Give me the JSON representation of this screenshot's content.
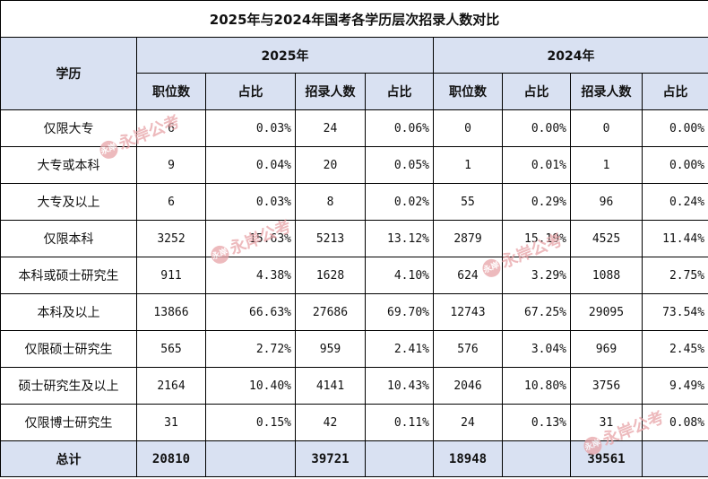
{
  "title": "2025年与2024年国考各学历层次招录人数对比",
  "header": {
    "education": "学历",
    "year_2025": "2025年",
    "year_2024": "2024年",
    "sub": [
      "职位数",
      "占比",
      "招录人数",
      "占比",
      "职位数",
      "占比",
      "招录人数",
      "占比"
    ]
  },
  "rows": [
    {
      "edu": "仅限大专",
      "v": [
        "6",
        "0.03%",
        "24",
        "0.06%",
        "0",
        "0.00%",
        "0",
        "0.00%"
      ]
    },
    {
      "edu": "大专或本科",
      "v": [
        "9",
        "0.04%",
        "20",
        "0.05%",
        "1",
        "0.01%",
        "1",
        "0.00%"
      ]
    },
    {
      "edu": "大专及以上",
      "v": [
        "6",
        "0.03%",
        "8",
        "0.02%",
        "55",
        "0.29%",
        "96",
        "0.24%"
      ]
    },
    {
      "edu": "仅限本科",
      "v": [
        "3252",
        "15.63%",
        "5213",
        "13.12%",
        "2879",
        "15.19%",
        "4525",
        "11.44%"
      ]
    },
    {
      "edu": "本科或硕士研究生",
      "v": [
        "911",
        "4.38%",
        "1628",
        "4.10%",
        "624",
        "3.29%",
        "1088",
        "2.75%"
      ]
    },
    {
      "edu": "本科及以上",
      "v": [
        "13866",
        "66.63%",
        "27686",
        "69.70%",
        "12743",
        "67.25%",
        "29095",
        "73.54%"
      ]
    },
    {
      "edu": "仅限硕士研究生",
      "v": [
        "565",
        "2.72%",
        "959",
        "2.41%",
        "576",
        "3.04%",
        "969",
        "2.45%"
      ]
    },
    {
      "edu": "硕士研究生及以上",
      "v": [
        "2164",
        "10.40%",
        "4141",
        "10.43%",
        "2046",
        "10.80%",
        "3756",
        "9.49%"
      ]
    },
    {
      "edu": "仅限博士研究生",
      "v": [
        "31",
        "0.15%",
        "42",
        "0.11%",
        "24",
        "0.13%",
        "31",
        "0.08%"
      ]
    }
  ],
  "total": {
    "label": "总计",
    "v": [
      "20810",
      "",
      "39721",
      "",
      "18948",
      "",
      "39561",
      ""
    ]
  },
  "watermark": {
    "text": "永岸公考",
    "seal": "永岸"
  }
}
